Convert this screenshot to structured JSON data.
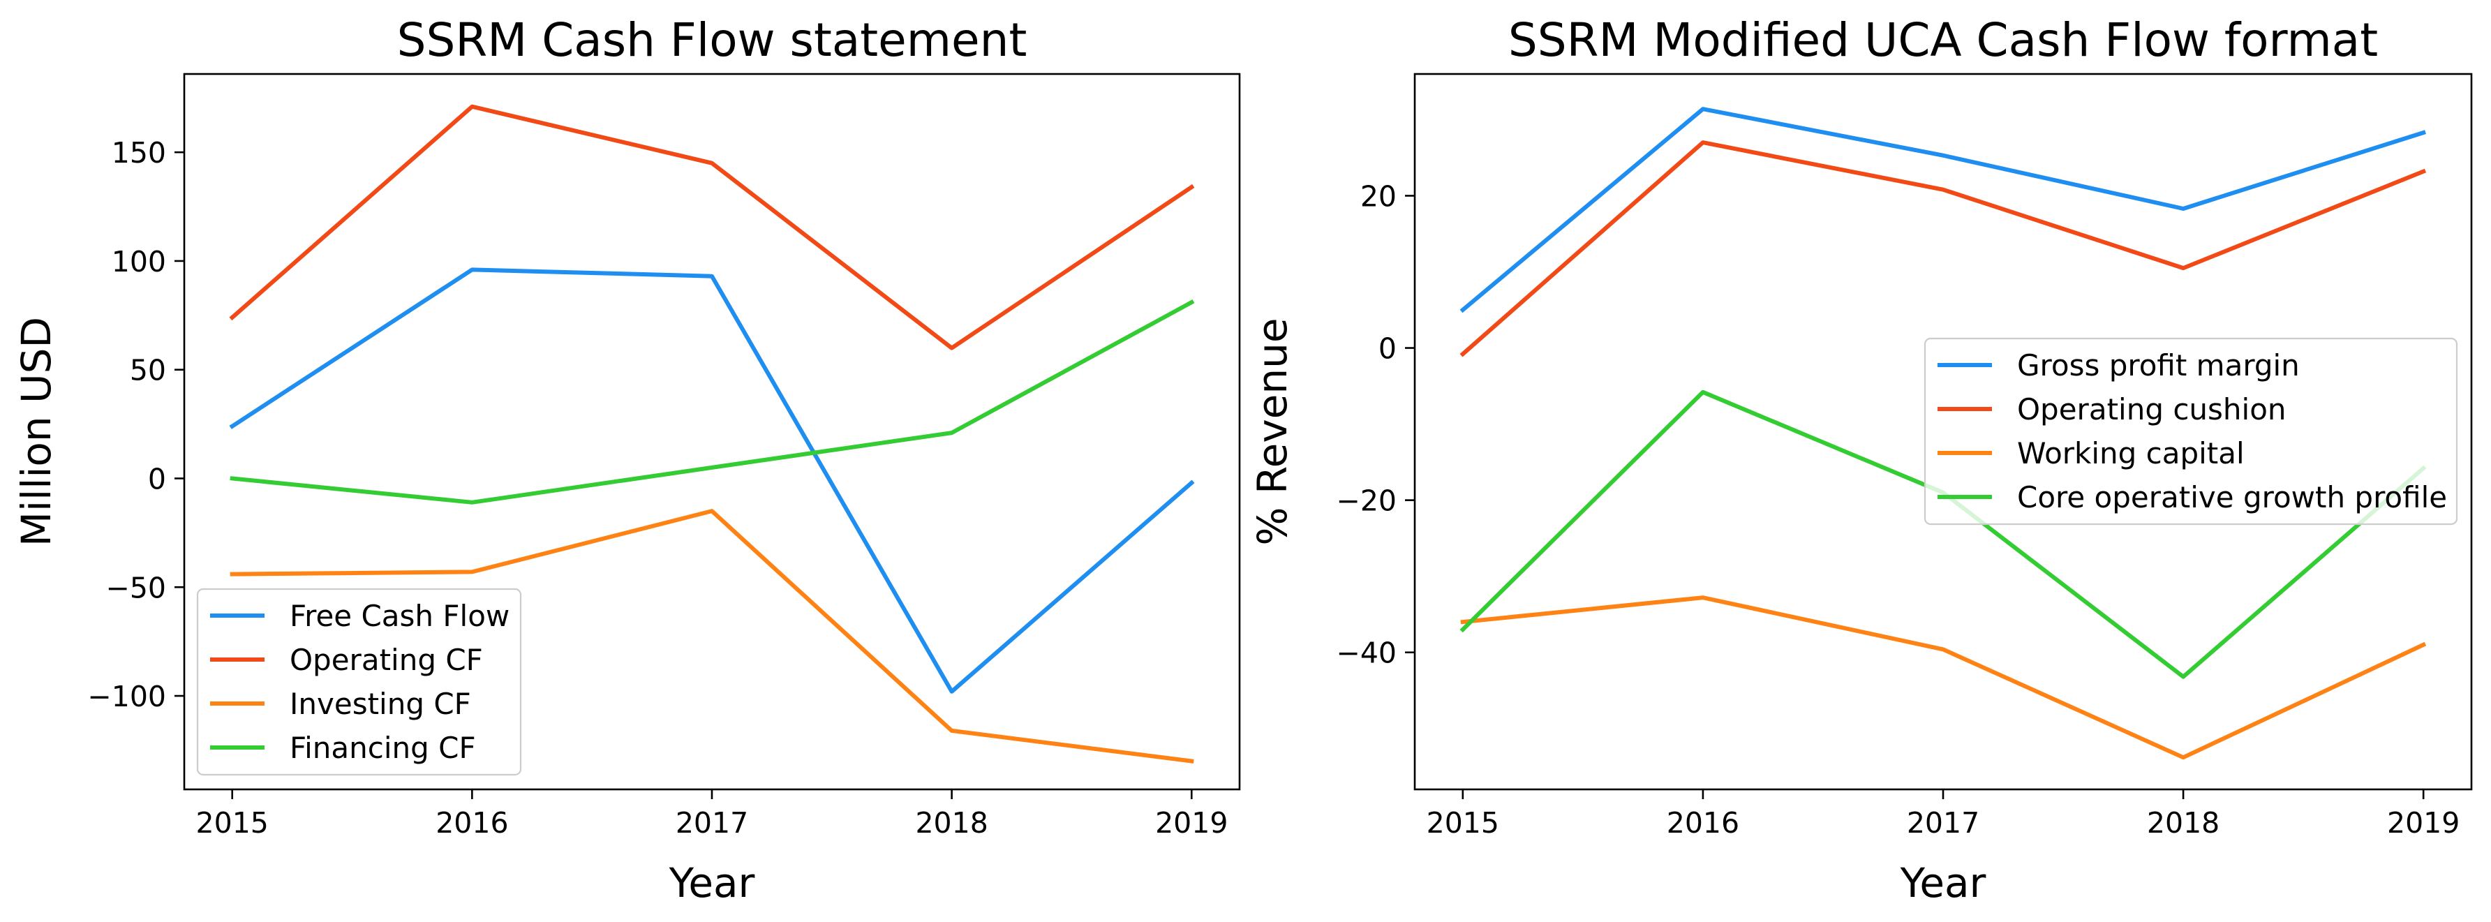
{
  "chart_data": [
    {
      "type": "line",
      "title": "SSRM Cash Flow statement",
      "xlabel": "Year",
      "ylabel": "Million USD",
      "x": [
        2015,
        2016,
        2017,
        2018,
        2019
      ],
      "xticks": [
        2015,
        2016,
        2017,
        2018,
        2019
      ],
      "yticks": [
        -100,
        -50,
        0,
        50,
        100,
        150
      ],
      "xlim": [
        2014.8,
        2019.2
      ],
      "ylim": [
        -143,
        186
      ],
      "grid": false,
      "legend_position": "lower-left",
      "series": [
        {
          "name": "Free Cash Flow",
          "color": "#1f8ef1",
          "values": [
            24,
            96,
            93,
            -98,
            -2
          ]
        },
        {
          "name": "Operating CF",
          "color": "#f24a17",
          "values": [
            74,
            171,
            145,
            60,
            134
          ]
        },
        {
          "name": "Investing CF",
          "color": "#ff8214",
          "values": [
            -44,
            -43,
            -15,
            -116,
            -130
          ]
        },
        {
          "name": "Financing CF",
          "color": "#33cc33",
          "values": [
            0,
            -11,
            5,
            21,
            81
          ]
        }
      ]
    },
    {
      "type": "line",
      "title": "SSRM Modified UCA Cash Flow format",
      "xlabel": "Year",
      "ylabel": "% Revenue",
      "x": [
        2015,
        2016,
        2017,
        2018,
        2019
      ],
      "xticks": [
        2015,
        2016,
        2017,
        2018,
        2019
      ],
      "yticks": [
        -40,
        -20,
        0,
        20
      ],
      "xlim": [
        2014.8,
        2019.2
      ],
      "ylim": [
        -58,
        36
      ],
      "grid": false,
      "legend_position": "center-right",
      "series": [
        {
          "name": "Gross profit margin",
          "color": "#1f8ef1",
          "values": [
            5,
            31.4,
            25.3,
            18.3,
            28.3
          ]
        },
        {
          "name": "Operating cushion",
          "color": "#f24a17",
          "values": [
            -0.8,
            27,
            20.8,
            10.5,
            23.2
          ]
        },
        {
          "name": "Working capital",
          "color": "#ff8214",
          "values": [
            -36,
            -32.8,
            -39.6,
            -53.8,
            -39
          ]
        },
        {
          "name": "Core operative growth profile",
          "color": "#33cc33",
          "values": [
            -37,
            -5.8,
            -19,
            -43.2,
            -15.8
          ]
        }
      ]
    }
  ]
}
